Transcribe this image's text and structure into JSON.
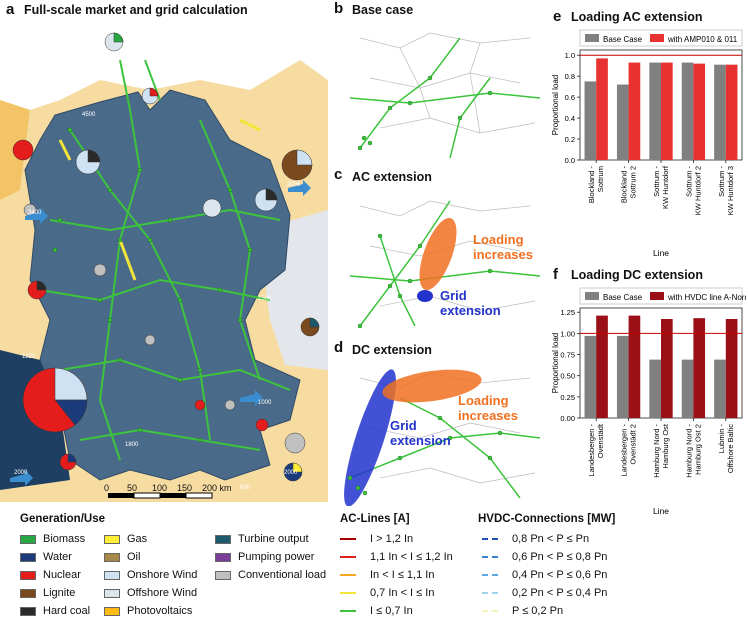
{
  "panel_a": {
    "label": "a",
    "title": "Full-scale market and grid calculation",
    "scalebar": {
      "ticks": [
        "0",
        "50",
        "100",
        "150",
        "200 km"
      ]
    },
    "flow_labels": [
      "3400",
      "4500",
      "2006",
      "1500",
      "1220",
      "1000",
      "2000",
      "2000",
      "1800",
      "600"
    ]
  },
  "panel_b": {
    "label": "b",
    "title": "Base case"
  },
  "panel_c": {
    "label": "c",
    "title": "AC extension",
    "annotation_orange": [
      "Loading",
      "increases"
    ],
    "annotation_blue": [
      "Grid",
      "extension"
    ]
  },
  "panel_d": {
    "label": "d",
    "title": "DC extension",
    "annotation_orange": [
      "Loading",
      "increases"
    ],
    "annotation_blue": [
      "Grid",
      "extension"
    ]
  },
  "colors": {
    "land": "#4a6a8a",
    "neighbor": "#f7dca2",
    "sea_light": "#e3e6ea",
    "ac_low": "#3cc43c",
    "grid_ext": "#2233cc",
    "load_inc": "#f07020",
    "base_bar": "#808080",
    "ac_bar": "#e83232",
    "dc_bar": "#9b1016",
    "limit": "#cc0000"
  },
  "chart_data": [
    {
      "panel": "e",
      "type": "bar",
      "title": "Loading AC extension",
      "xlabel": "Line",
      "ylabel": "Proportional load",
      "ylim": [
        0,
        1.05
      ],
      "yticks": [
        "0.0",
        "0.2",
        "0.4",
        "0.6",
        "0.8",
        "1.0"
      ],
      "categories": [
        "Blockland - Sottrum",
        "Blockland - Sottrum 2",
        "Sottrum - KW Huntdorf",
        "Sottrum - KW Huntdorf 2",
        "Sottrum - KW Huntdorf 3"
      ],
      "series": [
        {
          "name": "Base Case",
          "values": [
            0.75,
            0.72,
            0.93,
            0.93,
            0.91
          ]
        },
        {
          "name": "with AMP010 & 011",
          "values": [
            0.97,
            0.93,
            0.93,
            0.92,
            0.91
          ]
        }
      ],
      "limit": 1.0
    },
    {
      "panel": "f",
      "type": "bar",
      "title": "Loading DC extension",
      "xlabel": "Line",
      "ylabel": "Proportional load",
      "ylim": [
        0,
        1.3
      ],
      "yticks": [
        "0.00",
        "0.25",
        "0.50",
        "0.75",
        "1.00",
        "1.25"
      ],
      "categories": [
        "Landesbergen - Ovenstädt",
        "Landesbergen - Ovenstädt 2",
        "Hamburg Nord - Hamburg Ost",
        "Hamburg Nord - Hamburg Ost 2",
        "Lubmin - Offshore Baltic"
      ],
      "series": [
        {
          "name": "Base Case",
          "values": [
            0.97,
            0.97,
            0.69,
            0.69,
            0.69
          ]
        },
        {
          "name": "with HVDC line A-Nord",
          "values": [
            1.21,
            1.21,
            1.17,
            1.18,
            1.17
          ]
        }
      ],
      "limit": 1.0
    }
  ],
  "legend_gen": {
    "title": "Generation/Use",
    "items": [
      {
        "label": "Biomass",
        "color": "#27a844"
      },
      {
        "label": "Water",
        "color": "#1c3b7a"
      },
      {
        "label": "Nuclear",
        "color": "#e41c1c"
      },
      {
        "label": "Lignite",
        "color": "#7a4a1e"
      },
      {
        "label": "Hard coal",
        "color": "#2a2a2a"
      },
      {
        "label": "Gas",
        "color": "#ffee33"
      },
      {
        "label": "Oil",
        "color": "#a8884a"
      },
      {
        "label": "Onshore Wind",
        "color": "#cfe2f3"
      },
      {
        "label": "Offshore Wind",
        "color": "#dbe6ec"
      },
      {
        "label": "Photovoltaics",
        "color": "#ffbb11"
      },
      {
        "label": "Turbine output",
        "color": "#1e5a6e"
      },
      {
        "label": "Pumping power",
        "color": "#7a3d9a"
      },
      {
        "label": "Conventional load",
        "color": "#c0c0c0"
      }
    ]
  },
  "legend_ac": {
    "title": "AC-Lines [A]",
    "items": [
      {
        "label": "I > 1,2 In",
        "color": "#a80000"
      },
      {
        "label": "1,1 In < I ≤ 1,2 In",
        "color": "#e02020"
      },
      {
        "label": "In < I ≤ 1,1 In",
        "color": "#f5a623"
      },
      {
        "label": "0,7 In < I ≤ In",
        "color": "#f2e43a"
      },
      {
        "label": "I ≤ 0,7 In",
        "color": "#3cc43c"
      }
    ]
  },
  "legend_hvdc": {
    "title": "HVDC-Connections [MW]",
    "items": [
      {
        "label": "0,8 Pn < P ≤ Pn",
        "color": "#1f4fb5"
      },
      {
        "label": "0,6 Pn < P ≤ 0,8 Pn",
        "color": "#3b7fd0"
      },
      {
        "label": "0,4 Pn < P ≤ 0,6 Pn",
        "color": "#5fa8e0"
      },
      {
        "label": "0,2 Pn < P ≤ 0,4 Pn",
        "color": "#9fd3ea"
      },
      {
        "label": "P ≤ 0,2 Pn",
        "color": "#f6f1b8"
      }
    ]
  }
}
